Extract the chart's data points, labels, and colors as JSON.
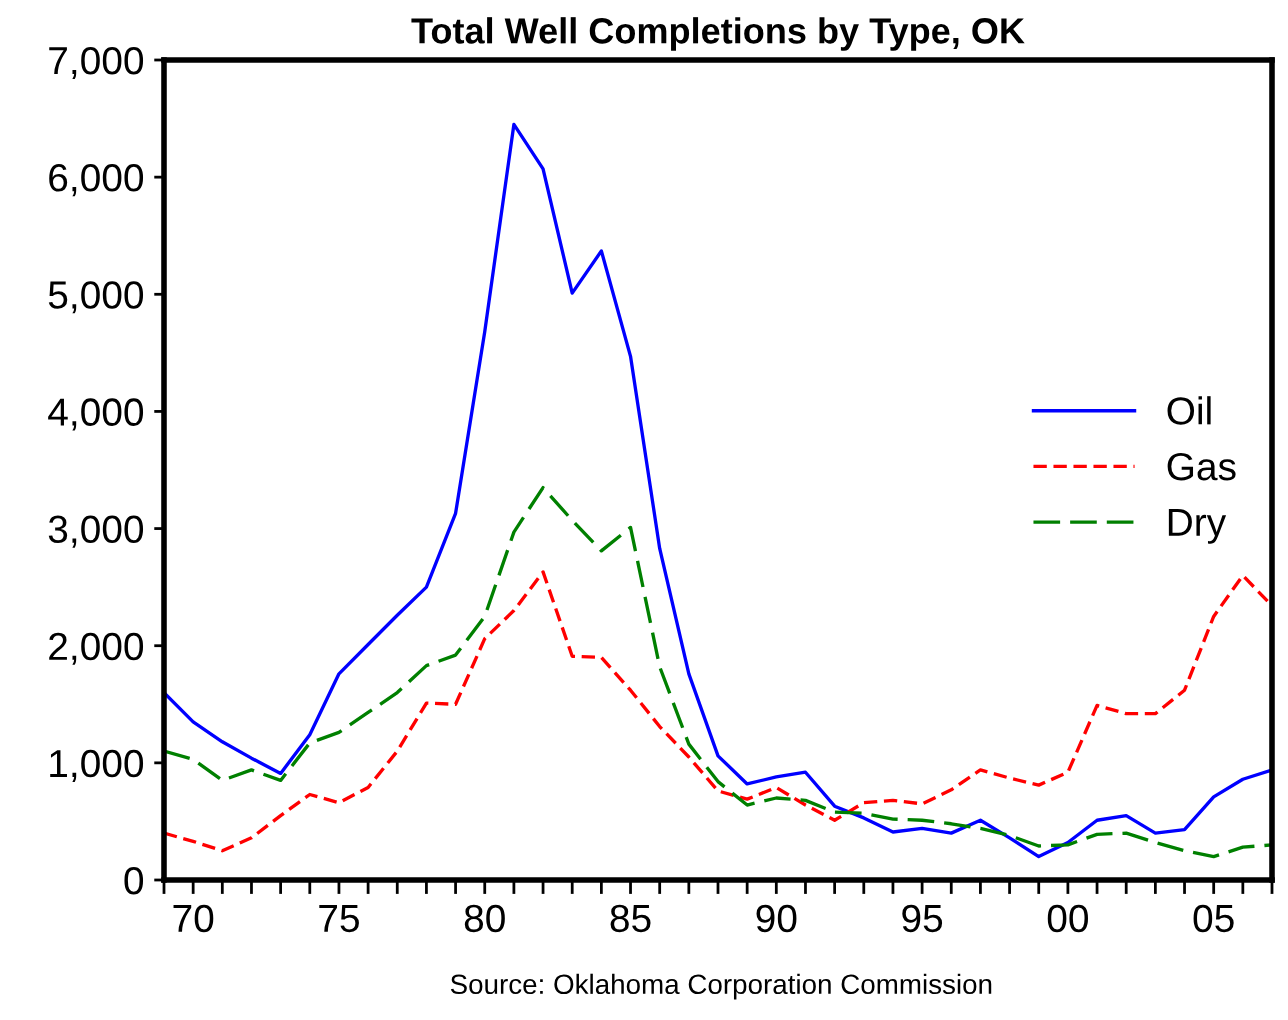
{
  "chart_data": {
    "type": "line",
    "title": "Total Well Completions by Type, OK",
    "x": [
      1969,
      1970,
      1971,
      1972,
      1973,
      1974,
      1975,
      1976,
      1977,
      1978,
      1979,
      1980,
      1981,
      1982,
      1983,
      1984,
      1985,
      1986,
      1987,
      1988,
      1989,
      1990,
      1991,
      1992,
      1993,
      1994,
      1995,
      1996,
      1997,
      1998,
      1999,
      2000,
      2001,
      2002,
      2003,
      2004,
      2005,
      2006,
      2007
    ],
    "series": [
      {
        "name": "Oil",
        "color": "#0000ff",
        "line_style": "solid",
        "values": [
          1600,
          1350,
          1180,
          1040,
          910,
          1240,
          1760,
          2010,
          2260,
          2500,
          3130,
          4680,
          6450,
          6070,
          5010,
          5370,
          4470,
          2830,
          1760,
          1060,
          820,
          880,
          920,
          630,
          530,
          410,
          440,
          400,
          510,
          360,
          200,
          320,
          510,
          550,
          400,
          430,
          710,
          860,
          940
        ]
      },
      {
        "name": "Gas",
        "color": "#ff0000",
        "line_style": "dashed",
        "values": [
          400,
          330,
          250,
          360,
          550,
          730,
          660,
          790,
          1100,
          1510,
          1500,
          2060,
          2300,
          2630,
          1910,
          1900,
          1620,
          1310,
          1050,
          760,
          690,
          790,
          640,
          510,
          660,
          680,
          650,
          770,
          940,
          870,
          810,
          920,
          1490,
          1420,
          1420,
          1620,
          2250,
          2600,
          2340
        ]
      },
      {
        "name": "Dry",
        "color": "#008000",
        "line_style": "dashed",
        "values": [
          1100,
          1030,
          850,
          940,
          850,
          1170,
          1260,
          1430,
          1600,
          1830,
          1920,
          2250,
          2970,
          3350,
          3070,
          2810,
          3010,
          1820,
          1160,
          840,
          640,
          700,
          680,
          580,
          570,
          520,
          510,
          480,
          440,
          380,
          290,
          300,
          390,
          400,
          320,
          250,
          200,
          280,
          300
        ]
      }
    ],
    "xlim": [
      1969,
      2007
    ],
    "xticks": [
      {
        "value": 1969,
        "label": null
      },
      {
        "value": 1970,
        "label": "70"
      },
      {
        "value": 1971,
        "label": null
      },
      {
        "value": 1972,
        "label": null
      },
      {
        "value": 1973,
        "label": null
      },
      {
        "value": 1974,
        "label": null
      },
      {
        "value": 1975,
        "label": "75"
      },
      {
        "value": 1976,
        "label": null
      },
      {
        "value": 1977,
        "label": null
      },
      {
        "value": 1978,
        "label": null
      },
      {
        "value": 1979,
        "label": null
      },
      {
        "value": 1980,
        "label": "80"
      },
      {
        "value": 1981,
        "label": null
      },
      {
        "value": 1982,
        "label": null
      },
      {
        "value": 1983,
        "label": null
      },
      {
        "value": 1984,
        "label": null
      },
      {
        "value": 1985,
        "label": "85"
      },
      {
        "value": 1986,
        "label": null
      },
      {
        "value": 1987,
        "label": null
      },
      {
        "value": 1988,
        "label": null
      },
      {
        "value": 1989,
        "label": null
      },
      {
        "value": 1990,
        "label": "90"
      },
      {
        "value": 1991,
        "label": null
      },
      {
        "value": 1992,
        "label": null
      },
      {
        "value": 1993,
        "label": null
      },
      {
        "value": 1994,
        "label": null
      },
      {
        "value": 1995,
        "label": "95"
      },
      {
        "value": 1996,
        "label": null
      },
      {
        "value": 1997,
        "label": null
      },
      {
        "value": 1998,
        "label": null
      },
      {
        "value": 1999,
        "label": null
      },
      {
        "value": 2000,
        "label": "00"
      },
      {
        "value": 2001,
        "label": null
      },
      {
        "value": 2002,
        "label": null
      },
      {
        "value": 2003,
        "label": null
      },
      {
        "value": 2004,
        "label": null
      },
      {
        "value": 2005,
        "label": "05"
      },
      {
        "value": 2006,
        "label": null
      },
      {
        "value": 2007,
        "label": null
      }
    ],
    "ylim": [
      0,
      7000
    ],
    "yticks": [
      {
        "value": 0,
        "label": "0"
      },
      {
        "value": 1000,
        "label": "1,000"
      },
      {
        "value": 2000,
        "label": "2,000"
      },
      {
        "value": 3000,
        "label": "3,000"
      },
      {
        "value": 4000,
        "label": "4,000"
      },
      {
        "value": 5000,
        "label": "5,000"
      },
      {
        "value": 6000,
        "label": "6,000"
      },
      {
        "value": 7000,
        "label": "7,000"
      }
    ],
    "grid": false,
    "legend": "right",
    "annotations": [
      "Source: Oklahoma Corporation Commission"
    ]
  }
}
